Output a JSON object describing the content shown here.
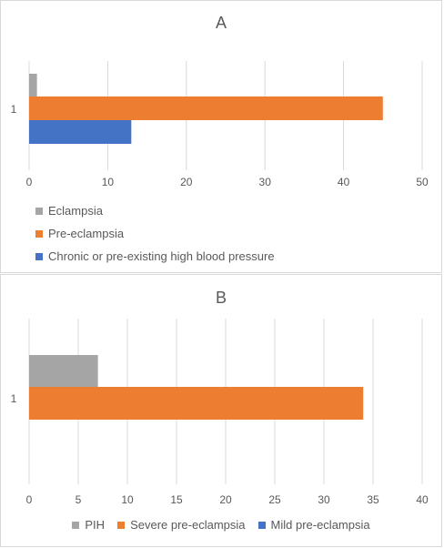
{
  "chart_data": [
    {
      "type": "bar",
      "orientation": "horizontal",
      "title": "A",
      "categories": [
        "1"
      ],
      "xlim": [
        0,
        50
      ],
      "xticks": [
        0,
        10,
        20,
        30,
        40,
        50
      ],
      "grid": true,
      "legend_placement": "bottom-left",
      "series": [
        {
          "name": "Eclampsia",
          "values": [
            1
          ],
          "color": "#a5a5a5"
        },
        {
          "name": "Pre-eclampsia",
          "values": [
            45
          ],
          "color": "#ed7d31"
        },
        {
          "name": "Chronic or pre-existing high blood pressure",
          "values": [
            13
          ],
          "color": "#4472c4"
        }
      ]
    },
    {
      "type": "bar",
      "orientation": "horizontal",
      "title": "B",
      "categories": [
        "1"
      ],
      "xlim": [
        0,
        40
      ],
      "xticks": [
        0,
        5,
        10,
        15,
        20,
        25,
        30,
        35,
        40
      ],
      "grid": true,
      "legend_placement": "bottom",
      "series": [
        {
          "name": "PIH",
          "values": [
            7
          ],
          "color": "#a5a5a5"
        },
        {
          "name": "Severe pre-eclampsia",
          "values": [
            34
          ],
          "color": "#ed7d31"
        },
        {
          "name": "Mild pre-eclampsia",
          "values": [
            0
          ],
          "color": "#4472c4"
        }
      ]
    }
  ]
}
